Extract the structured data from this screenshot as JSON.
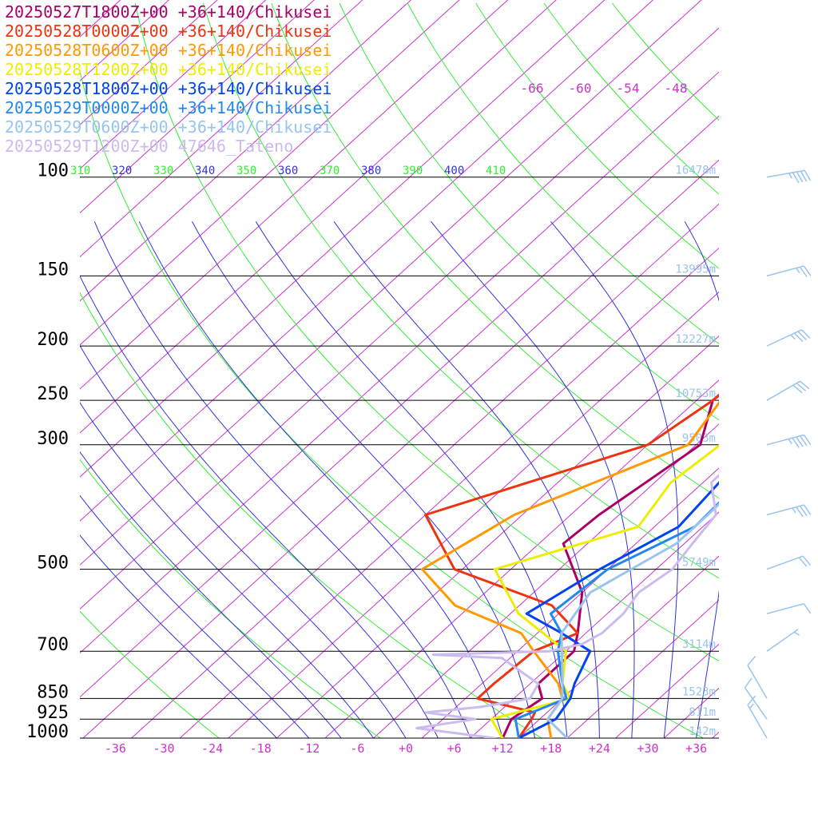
{
  "chart_data": {
    "type": "line",
    "title": "",
    "legend_position": "top-left",
    "legend": [
      {
        "label": "20250527T1800Z+00 +36+140/Chikusei",
        "color": "#aa0066"
      },
      {
        "label": "20250528T0000Z+00 +36+140/Chikusei",
        "color": "#ee3311"
      },
      {
        "label": "20250528T0600Z+00 +36+140/Chikusei",
        "color": "#ff9900"
      },
      {
        "label": "20250528T1200Z+00 +36+140/Chikusei",
        "color": "#eeee00"
      },
      {
        "label": "20250528T1800Z+00 +36+140/Chikusei",
        "color": "#0044ee"
      },
      {
        "label": "20250529T0000Z+00 +36+140/Chikusei",
        "color": "#2288ee"
      },
      {
        "label": "20250529T0600Z+00 +36+140/Chikusei",
        "color": "#99c4ee"
      },
      {
        "label": "20250529T1200Z+00 47646_Tateno",
        "color": "#ccbbee"
      }
    ],
    "pressure_levels": [
      {
        "p": 100,
        "label": "100",
        "height": "16478m"
      },
      {
        "p": 150,
        "label": "150",
        "height": "13995m"
      },
      {
        "p": 200,
        "label": "200",
        "height": "12227m"
      },
      {
        "p": 250,
        "label": "250",
        "height": "10753m"
      },
      {
        "p": 300,
        "label": "300",
        "height": "9503m"
      },
      {
        "p": 500,
        "label": "500",
        "height": "5749m"
      },
      {
        "p": 700,
        "label": "700",
        "height": "3114m"
      },
      {
        "p": 850,
        "label": "850",
        "height": "1523m"
      },
      {
        "p": 925,
        "label": "925",
        "height": "811m"
      },
      {
        "p": 1000,
        "label": "1000",
        "height": "142m"
      }
    ],
    "x_ticks": [
      "-36",
      "-30",
      "-24",
      "-18",
      "-12",
      "-6",
      "+0",
      "+6",
      "+12",
      "+18",
      "+24",
      "+30",
      "+36"
    ],
    "x_tick_values": [
      -36,
      -30,
      -24,
      -18,
      -12,
      -6,
      0,
      6,
      12,
      18,
      24,
      30,
      36
    ],
    "isotherm_top_labels": [
      "-66",
      "-60",
      "-54",
      "-48"
    ],
    "theta_labels": [
      {
        "label": "310",
        "kind": "dry"
      },
      {
        "label": "320",
        "kind": "moist"
      },
      {
        "label": "330",
        "kind": "dry"
      },
      {
        "label": "340",
        "kind": "moist"
      },
      {
        "label": "350",
        "kind": "dry"
      },
      {
        "label": "360",
        "kind": "moist"
      },
      {
        "label": "370",
        "kind": "dry"
      },
      {
        "label": "380",
        "kind": "moist"
      },
      {
        "label": "390",
        "kind": "dry"
      },
      {
        "label": "400",
        "kind": "moist"
      },
      {
        "label": "410",
        "kind": "dry"
      }
    ],
    "ylim": [
      1000,
      100
    ],
    "series": [
      {
        "name": "20250527T1800Z+00 +36+140/Chikusei",
        "color": "#aa0066",
        "points": [
          [
            1000,
            12
          ],
          [
            925,
            10.5
          ],
          [
            850,
            11.5
          ],
          [
            800,
            9
          ],
          [
            700,
            9
          ],
          [
            650,
            7
          ],
          [
            550,
            2
          ],
          [
            450,
            -7
          ],
          [
            400,
            -6.5
          ],
          [
            300,
            -3.5
          ],
          [
            250,
            -8
          ],
          [
            200,
            -7
          ],
          [
            175,
            -1
          ],
          [
            160,
            6
          ],
          [
            150,
            10
          ],
          [
            125,
            10
          ],
          [
            100,
            10
          ],
          [
            80,
            16
          ],
          [
            60,
            38
          ]
        ]
      },
      {
        "name": "20250528T0000Z+00 +36+140/Chikusei",
        "color": "#ee3311",
        "points": [
          [
            1000,
            14
          ],
          [
            925,
            13
          ],
          [
            900,
            12.5
          ],
          [
            850,
            3.5
          ],
          [
            800,
            3.5
          ],
          [
            700,
            4
          ],
          [
            650,
            7
          ],
          [
            580,
            0
          ],
          [
            500,
            -17
          ],
          [
            400,
            -28
          ],
          [
            300,
            -10
          ],
          [
            250,
            -8
          ],
          [
            200,
            -7.5
          ],
          [
            180,
            -4
          ],
          [
            150,
            4
          ],
          [
            120,
            10
          ],
          [
            100,
            12
          ],
          [
            80,
            17
          ],
          [
            60,
            40
          ]
        ]
      },
      {
        "name": "20250528T0600Z+00 +36+140/Chikusei",
        "color": "#ff9900",
        "points": [
          [
            1000,
            18
          ],
          [
            925,
            15
          ],
          [
            850,
            14
          ],
          [
            800,
            11.5
          ],
          [
            700,
            4
          ],
          [
            650,
            0
          ],
          [
            580,
            -12
          ],
          [
            500,
            -21
          ],
          [
            400,
            -17
          ],
          [
            300,
            -5
          ],
          [
            250,
            -7
          ],
          [
            200,
            -6.5
          ],
          [
            180,
            -3
          ],
          [
            150,
            5
          ],
          [
            120,
            10
          ],
          [
            100,
            12
          ],
          [
            80,
            18
          ],
          [
            60,
            40
          ]
        ]
      },
      {
        "name": "20250528T1200Z+00 +36+140/Chikusei",
        "color": "#eeee00",
        "points": [
          [
            1000,
            12
          ],
          [
            925,
            8
          ],
          [
            850,
            15
          ],
          [
            800,
            12
          ],
          [
            700,
            8
          ],
          [
            600,
            -3
          ],
          [
            500,
            -12
          ],
          [
            420,
            0
          ],
          [
            350,
            -2
          ],
          [
            300,
            -1
          ],
          [
            250,
            -4
          ],
          [
            200,
            -6.5
          ],
          [
            160,
            1
          ],
          [
            150,
            8
          ],
          [
            120,
            11
          ],
          [
            100,
            13
          ],
          [
            80,
            18
          ],
          [
            60,
            42
          ]
        ]
      },
      {
        "name": "20250528T1800Z+00 +36+140/Chikusei",
        "color": "#0044ee",
        "points": [
          [
            1000,
            14
          ],
          [
            925,
            16
          ],
          [
            850,
            15
          ],
          [
            800,
            13.5
          ],
          [
            700,
            11
          ],
          [
            650,
            5
          ],
          [
            600,
            -2
          ],
          [
            500,
            1
          ],
          [
            420,
            5
          ],
          [
            350,
            4
          ],
          [
            300,
            3
          ],
          [
            250,
            -1
          ],
          [
            200,
            -7.5
          ],
          [
            170,
            -8
          ],
          [
            150,
            2
          ],
          [
            120,
            12
          ],
          [
            100,
            20
          ],
          [
            80,
            18
          ],
          [
            60,
            42
          ]
        ]
      },
      {
        "name": "20250529T0000Z+00 +36+140/Chikusei",
        "color": "#2288ee",
        "points": [
          [
            1000,
            14
          ],
          [
            925,
            11
          ],
          [
            850,
            14.5
          ],
          [
            800,
            12
          ],
          [
            700,
            7
          ],
          [
            650,
            5
          ],
          [
            600,
            1
          ],
          [
            500,
            2
          ],
          [
            420,
            7
          ],
          [
            350,
            6.5
          ],
          [
            300,
            4
          ],
          [
            250,
            -2
          ],
          [
            200,
            -7.5
          ],
          [
            180,
            -11
          ],
          [
            150,
            -6
          ],
          [
            120,
            2
          ],
          [
            100,
            14
          ],
          [
            80,
            18
          ],
          [
            60,
            42
          ]
        ]
      },
      {
        "name": "20250529T0600Z+00 +36+140/Chikusei",
        "color": "#99c4ee",
        "points": [
          [
            1000,
            20
          ],
          [
            925,
            15
          ],
          [
            850,
            14
          ],
          [
            800,
            12
          ],
          [
            700,
            7.5
          ],
          [
            650,
            5
          ],
          [
            550,
            3
          ],
          [
            450,
            7
          ],
          [
            400,
            7
          ],
          [
            300,
            6.5
          ],
          [
            250,
            3
          ],
          [
            200,
            -6
          ],
          [
            170,
            -11
          ],
          [
            150,
            -6
          ],
          [
            120,
            4
          ],
          [
            100,
            15
          ],
          [
            80,
            18
          ],
          [
            60,
            42
          ]
        ]
      },
      {
        "name": "20250529T1200Z+00 47646_Tateno",
        "color": "#ccbbee",
        "points": [
          [
            1000,
            11
          ],
          [
            960,
            0
          ],
          [
            925,
            6
          ],
          [
            900,
            -1
          ],
          [
            880,
            5
          ],
          [
            850,
            10
          ],
          [
            800,
            9
          ],
          [
            720,
            1
          ],
          [
            710,
            -8
          ],
          [
            700,
            6
          ],
          [
            680,
            9
          ],
          [
            650,
            10
          ],
          [
            600,
            10
          ],
          [
            550,
            9
          ],
          [
            500,
            10
          ],
          [
            450,
            9
          ],
          [
            400,
            8
          ],
          [
            350,
            3
          ],
          [
            300,
            3
          ],
          [
            250,
            -4
          ],
          [
            200,
            -6
          ],
          [
            170,
            -16
          ],
          [
            150,
            -19
          ],
          [
            125,
            -13
          ],
          [
            110,
            -4
          ],
          [
            100,
            8
          ],
          [
            90,
            14
          ],
          [
            80,
            22
          ],
          [
            60,
            42
          ]
        ]
      }
    ],
    "wind_barbs": [
      {
        "p": 100,
        "speed_kt": 45,
        "dir_deg": 260
      },
      {
        "p": 150,
        "speed_kt": 25,
        "dir_deg": 255
      },
      {
        "p": 200,
        "speed_kt": 35,
        "dir_deg": 245
      },
      {
        "p": 250,
        "speed_kt": 30,
        "dir_deg": 240
      },
      {
        "p": 300,
        "speed_kt": 45,
        "dir_deg": 255
      },
      {
        "p": 400,
        "speed_kt": 35,
        "dir_deg": 255
      },
      {
        "p": 500,
        "speed_kt": 20,
        "dir_deg": 250
      },
      {
        "p": 600,
        "speed_kt": 10,
        "dir_deg": 255
      },
      {
        "p": 700,
        "speed_kt": 5,
        "dir_deg": 235
      },
      {
        "p": 850,
        "speed_kt": 10,
        "dir_deg": 150
      },
      {
        "p": 925,
        "speed_kt": 10,
        "dir_deg": 145
      },
      {
        "p": 1000,
        "speed_kt": 15,
        "dir_deg": 150
      }
    ],
    "colors": {
      "isotherm": "#cc33cc",
      "dry_adiabat": "#33ee33",
      "moist_adiabat": "#3333dd",
      "isobar": "#000000",
      "height_label": "#99c4ee",
      "wind_barb": "#99c4ee"
    }
  }
}
